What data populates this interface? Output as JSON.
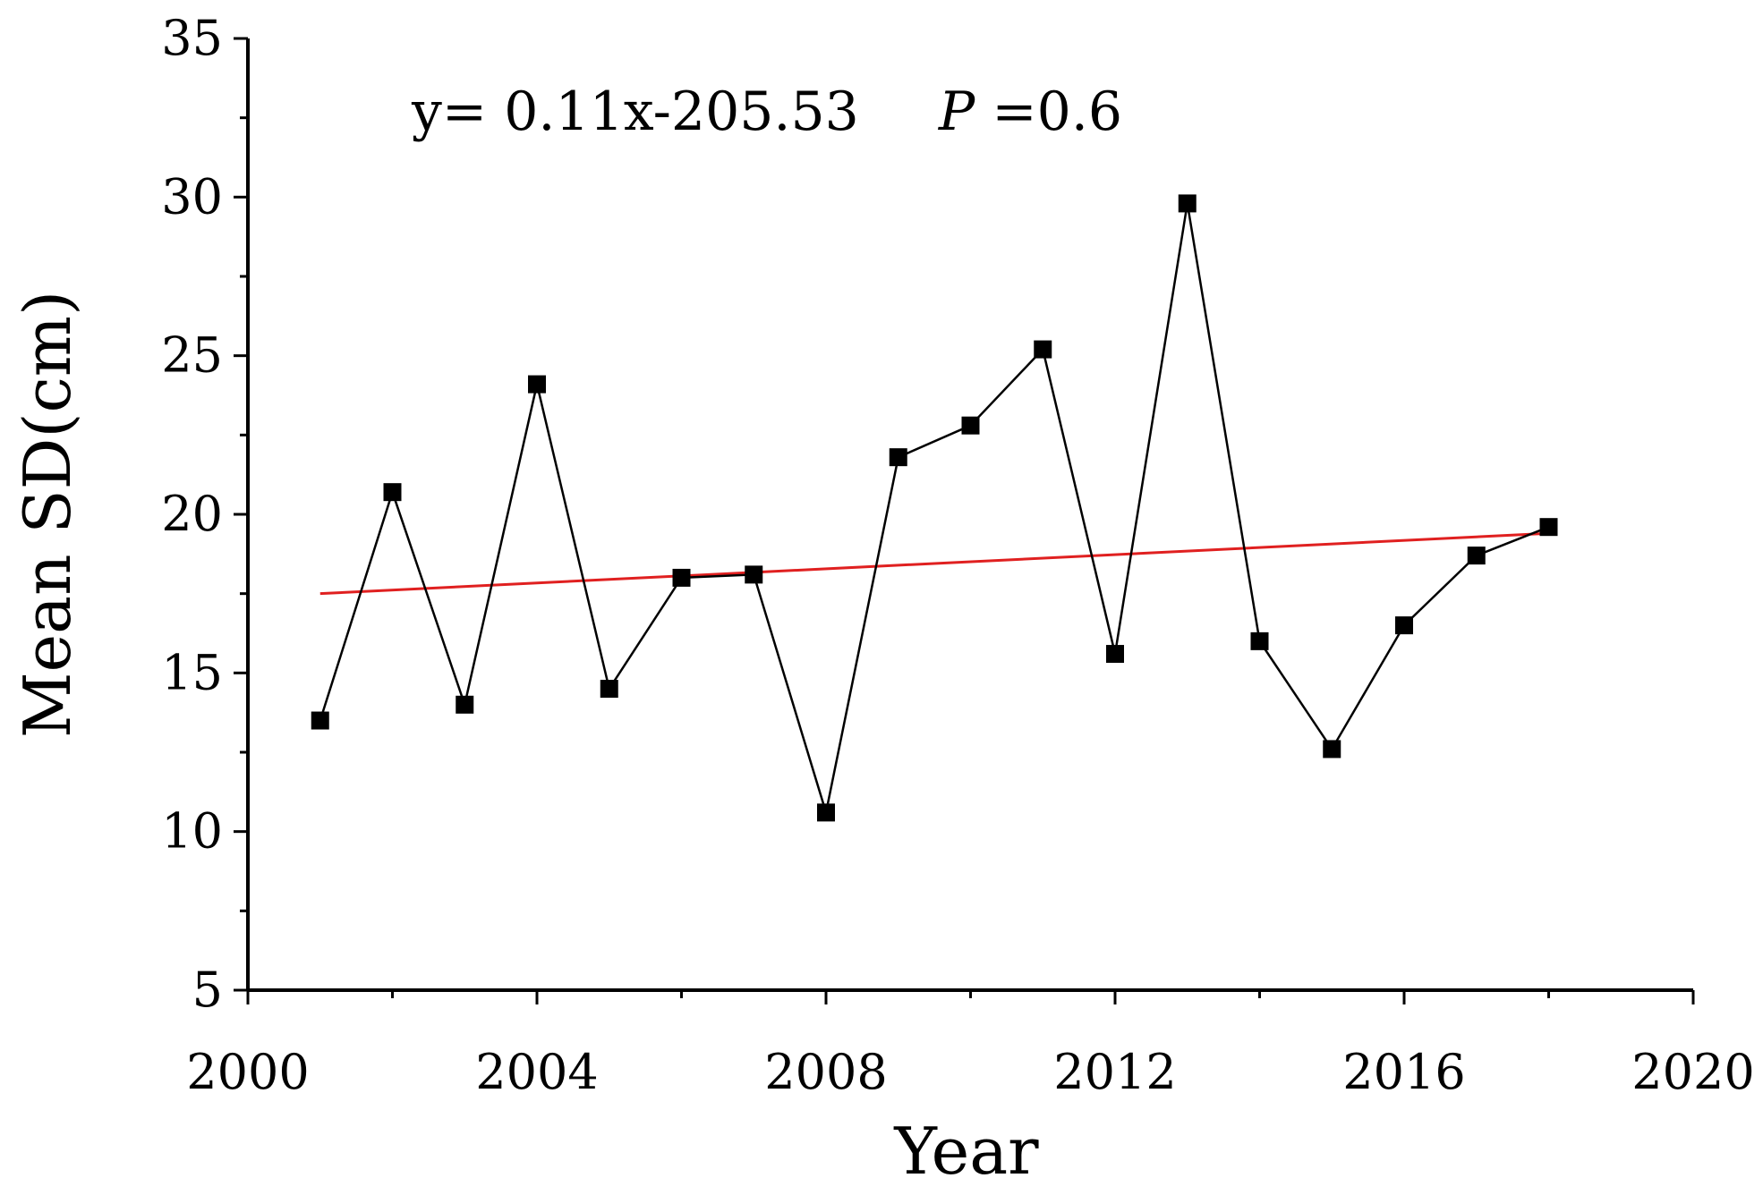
{
  "chart_data": {
    "type": "line",
    "xlabel": "Year",
    "ylabel": "Mean SD(cm)",
    "xlim": [
      2000,
      2020
    ],
    "ylim": [
      5,
      35
    ],
    "xticks": [
      2000,
      2004,
      2008,
      2012,
      2016,
      2020
    ],
    "yticks": [
      5,
      10,
      15,
      20,
      25,
      30,
      35
    ],
    "x_minor_step": 2,
    "y_minor_step": 2.5,
    "grid": false,
    "annotation": {
      "equation": "y= 0.11x-205.53",
      "p_label": "P",
      "p_value": "=0.6"
    },
    "series": [
      {
        "x": [
          2001,
          2002,
          2003,
          2004,
          2005,
          2006,
          2007,
          2008,
          2009,
          2010,
          2011,
          2012,
          2013,
          2014,
          2015,
          2016,
          2017,
          2018
        ],
        "values": [
          13.5,
          20.7,
          14.0,
          24.1,
          14.5,
          18.0,
          18.1,
          10.6,
          21.8,
          22.8,
          25.2,
          15.6,
          29.8,
          16.0,
          12.6,
          16.5,
          18.7,
          19.6
        ],
        "color": "#000000",
        "marker": "square"
      }
    ],
    "trendline": {
      "x": [
        2001,
        2018
      ],
      "values": [
        17.5,
        19.4
      ],
      "color": "#e02020"
    }
  }
}
